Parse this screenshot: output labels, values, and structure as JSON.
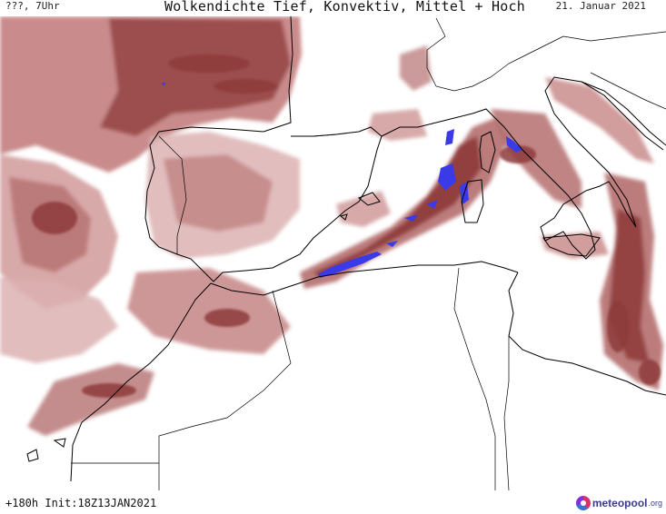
{
  "header": {
    "left_label": "???, 7Uhr",
    "title": "Wolkendichte  Tief, Konvektiv, Mittel + Hoch",
    "date": "21. Januar 2021"
  },
  "footer": {
    "forecast_info": "+180h Init:18Z13JAN2021",
    "logo_text": "meteopool",
    "logo_tld": ".org"
  },
  "colors": {
    "cloud_light": "#dcb1b1",
    "cloud_mid": "#b56f6f",
    "cloud_dark": "#8e3a3a",
    "convective": "#3a3ae8",
    "coastline": "#000000"
  },
  "map": {
    "region": "Western Mediterranean / Iberia / North Africa",
    "layers": [
      "cloud-density",
      "convective-cells",
      "coastlines",
      "borders"
    ]
  }
}
